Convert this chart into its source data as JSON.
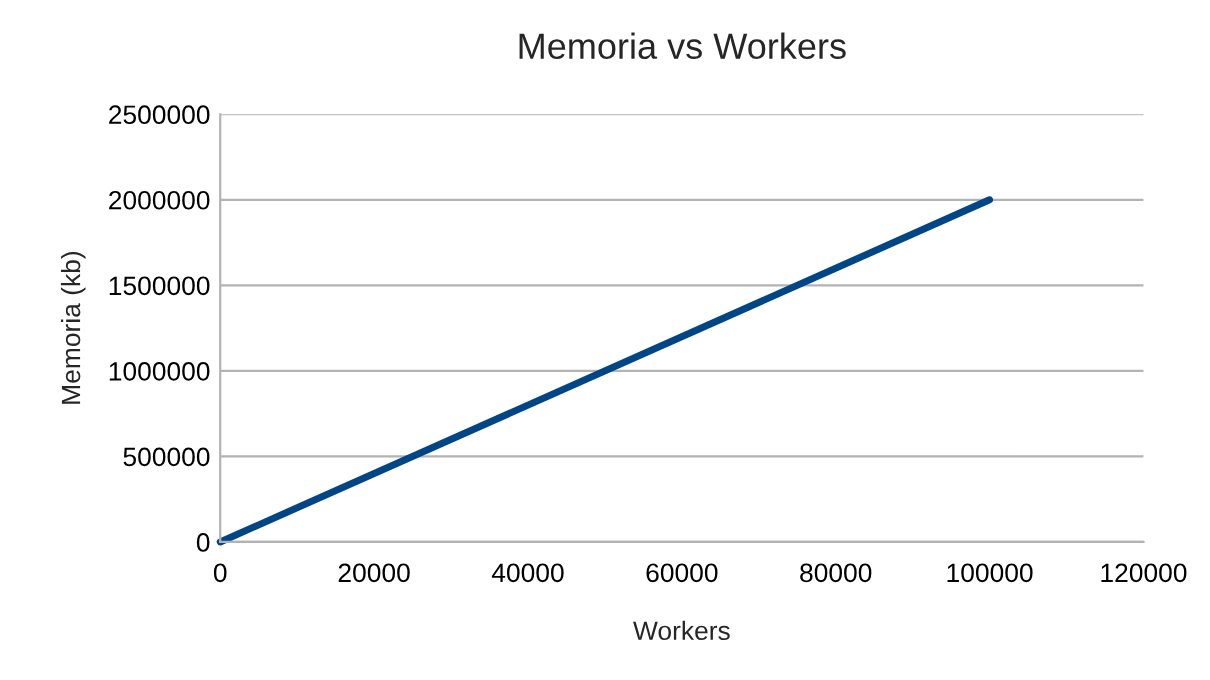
{
  "chart_data": {
    "type": "line",
    "title": "Memoria vs Workers",
    "xlabel": "Workers",
    "ylabel": "Memoria (kb)",
    "x": [
      0,
      100000
    ],
    "series": [
      {
        "color": "#004586",
        "values": [
          0,
          2000000
        ]
      }
    ],
    "xlim": [
      0,
      120000
    ],
    "xticks": [
      0,
      20000,
      40000,
      60000,
      80000,
      100000,
      120000
    ],
    "ylim": [
      0,
      2500000
    ],
    "yticks": [
      0,
      500000,
      1000000,
      1500000,
      2000000,
      2500000
    ],
    "grid": "y",
    "marker": "none",
    "line_style": "solid"
  }
}
